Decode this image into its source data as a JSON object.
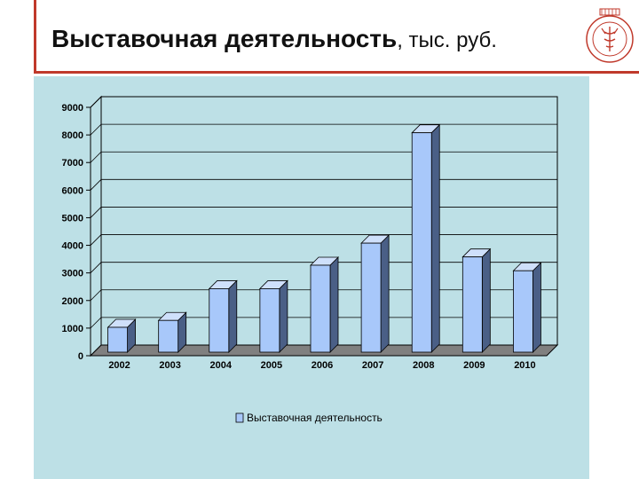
{
  "slide": {
    "title_main": "Выставочная деятельность",
    "title_unit": ", тыс. руб.",
    "logo_icon": "university-emblem-icon",
    "accent_color": "#c0392b",
    "panel_color": "#bde0e6"
  },
  "chart_data": {
    "type": "bar",
    "categories": [
      "2002",
      "2003",
      "2004",
      "2005",
      "2006",
      "2007",
      "2008",
      "2009",
      "2010"
    ],
    "series": [
      {
        "name": "Выставочная деятельность",
        "values": [
          900,
          1150,
          2300,
          2300,
          3150,
          3950,
          7950,
          3450,
          2950
        ],
        "color": "#a8c8fa"
      }
    ],
    "ylim": [
      0,
      9000
    ],
    "yticks": [
      "0",
      "1000",
      "2000",
      "3000",
      "4000",
      "5000",
      "6000",
      "7000",
      "8000",
      "9000"
    ],
    "grid": true,
    "legend": "bottom"
  }
}
